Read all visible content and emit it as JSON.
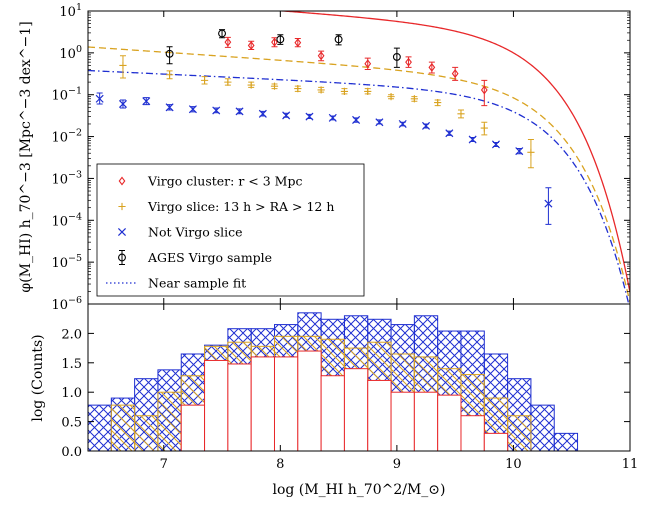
{
  "chart_data": [
    {
      "type": "scatter",
      "ylabel": "φ(M_HI) h_70^−3 [Mpc^−3 dex^−1]",
      "yscale": "log",
      "xlim": [
        6.35,
        11.0
      ],
      "ylim": [
        1e-06,
        10
      ],
      "ytick_labels": [
        "10^-6",
        "10^-5",
        "10^-4",
        "10^-3",
        "10^-2",
        "10^-1",
        "10^0",
        "10^1"
      ],
      "legend_position": "lower-left",
      "series": [
        {
          "name": "Virgo cluster: r < 3 Mpc",
          "marker": "diamond",
          "color": "#e8282a",
          "x": [
            7.55,
            7.75,
            7.95,
            8.15,
            8.35,
            8.75,
            9.1,
            9.3,
            9.5,
            9.75
          ],
          "y": [
            1.8,
            1.5,
            1.8,
            1.75,
            0.85,
            0.55,
            0.6,
            0.45,
            0.32,
            0.13
          ],
          "y_lower": [
            1.35,
            1.2,
            1.4,
            1.4,
            0.65,
            0.4,
            0.45,
            0.33,
            0.22,
            0.055
          ],
          "y_upper": [
            2.35,
            1.9,
            2.3,
            2.2,
            1.1,
            0.75,
            0.8,
            0.6,
            0.45,
            0.22
          ]
        },
        {
          "name": "Virgo slice: 13 h > RA > 12 h",
          "marker": "plus",
          "color": "#d9a321",
          "x": [
            6.65,
            7.05,
            7.35,
            7.55,
            7.75,
            7.95,
            8.15,
            8.35,
            8.55,
            8.75,
            8.95,
            9.15,
            9.35,
            9.55,
            9.75,
            10.15
          ],
          "y": [
            0.5,
            0.3,
            0.22,
            0.2,
            0.17,
            0.16,
            0.14,
            0.13,
            0.12,
            0.12,
            0.09,
            0.08,
            0.065,
            0.035,
            0.016,
            0.0042
          ],
          "y_lower": [
            0.25,
            0.24,
            0.18,
            0.17,
            0.15,
            0.14,
            0.12,
            0.115,
            0.105,
            0.105,
            0.08,
            0.07,
            0.055,
            0.028,
            0.011,
            0.0018
          ],
          "y_upper": [
            0.85,
            0.37,
            0.27,
            0.24,
            0.2,
            0.18,
            0.16,
            0.15,
            0.14,
            0.14,
            0.1,
            0.09,
            0.075,
            0.043,
            0.022,
            0.0085
          ]
        },
        {
          "name": "Not Virgo slice",
          "marker": "x",
          "color": "#1f2fd1",
          "x": [
            6.45,
            6.65,
            6.85,
            7.05,
            7.25,
            7.45,
            7.65,
            7.85,
            8.05,
            8.25,
            8.45,
            8.65,
            8.85,
            9.05,
            9.25,
            9.45,
            9.65,
            9.85,
            10.05,
            10.3
          ],
          "y": [
            0.08,
            0.06,
            0.07,
            0.05,
            0.045,
            0.042,
            0.04,
            0.035,
            0.032,
            0.03,
            0.028,
            0.025,
            0.022,
            0.02,
            0.018,
            0.012,
            0.0085,
            0.0065,
            0.0045,
            0.00025
          ],
          "y_lower": [
            0.06,
            0.048,
            0.058,
            0.043,
            0.039,
            0.037,
            0.035,
            0.031,
            0.029,
            0.027,
            0.025,
            0.022,
            0.02,
            0.018,
            0.016,
            0.0107,
            0.0076,
            0.0058,
            0.0039,
            8e-05
          ],
          "y_upper": [
            0.11,
            0.075,
            0.085,
            0.058,
            0.052,
            0.048,
            0.046,
            0.04,
            0.036,
            0.034,
            0.031,
            0.028,
            0.025,
            0.022,
            0.02,
            0.0135,
            0.0095,
            0.0072,
            0.0052,
            0.0006
          ]
        },
        {
          "name": "AGES Virgo sample",
          "marker": "open-circle",
          "color": "#000000",
          "x": [
            7.05,
            7.5,
            8.0,
            8.5,
            9.0
          ],
          "y": [
            0.95,
            2.9,
            2.1,
            2.1,
            0.8
          ],
          "y_lower": [
            0.55,
            2.3,
            1.6,
            1.55,
            0.45
          ],
          "y_upper": [
            1.4,
            3.6,
            2.7,
            2.7,
            1.3
          ]
        },
        {
          "name": "Near sample fit",
          "line_style": "dotted",
          "color": "#1f2fd1"
        },
        {
          "name": "",
          "type": "line",
          "style": "solid",
          "color": "#e8282a",
          "schechter": {
            "log_phi_star": 0.28,
            "log_m_star": 9.85,
            "alpha": -1.2
          }
        },
        {
          "name": "",
          "type": "line",
          "style": "dashed",
          "color": "#d9a321",
          "schechter": {
            "log_phi_star": -0.9,
            "log_m_star": 9.92,
            "alpha": -1.19
          }
        },
        {
          "name": "",
          "type": "line",
          "style": "dashdot",
          "color": "#1f2fd1",
          "schechter": {
            "log_phi_star": -1.25,
            "log_m_star": 9.93,
            "alpha": -1.13
          }
        }
      ]
    },
    {
      "type": "bar",
      "xlabel": "log (M_HI h_70^2/M_⊙)",
      "ylabel": "log (Counts)",
      "xlim": [
        6.35,
        11.0
      ],
      "ylim": [
        0,
        2.5
      ],
      "xtick_labels": [
        "7",
        "8",
        "9",
        "10",
        "11"
      ],
      "ytick_labels": [
        "0.0",
        "0.5",
        "1.0",
        "1.5",
        "2.0"
      ],
      "bin_left_edges": [
        6.35,
        6.55,
        6.75,
        6.95,
        7.15,
        7.35,
        7.55,
        7.75,
        7.95,
        8.15,
        8.35,
        8.55,
        8.75,
        8.95,
        9.15,
        9.35,
        9.55,
        9.75,
        9.95,
        10.15,
        10.35
      ],
      "bin_width": 0.2,
      "series": [
        {
          "name": "Not Virgo slice",
          "hatch": "crosshatch",
          "color": "#1f2fd1",
          "values": [
            0.78,
            0.9,
            1.23,
            1.38,
            1.65,
            1.8,
            2.08,
            2.08,
            2.15,
            2.35,
            2.24,
            2.3,
            2.24,
            2.15,
            2.3,
            2.04,
            2.04,
            1.65,
            1.23,
            0.78,
            0.3
          ]
        },
        {
          "name": "Virgo slice: 13 h > RA > 12 h",
          "hatch": "diagonal",
          "color": "#d9a321",
          "values": [
            0.0,
            0.78,
            0.6,
            1.0,
            1.28,
            1.78,
            1.85,
            1.78,
            1.95,
            1.95,
            1.9,
            1.75,
            1.85,
            1.65,
            1.6,
            1.4,
            1.3,
            0.9,
            0.6,
            0.0,
            0.0
          ]
        },
        {
          "name": "Virgo cluster: r < 3 Mpc",
          "hatch": "none",
          "color": "#e8282a",
          "values": [
            0,
            0,
            0,
            0,
            0.78,
            1.54,
            1.48,
            1.6,
            1.6,
            1.7,
            1.28,
            1.4,
            1.2,
            1.0,
            1.0,
            0.95,
            0.6,
            0.3,
            0,
            0,
            0
          ]
        }
      ]
    }
  ]
}
